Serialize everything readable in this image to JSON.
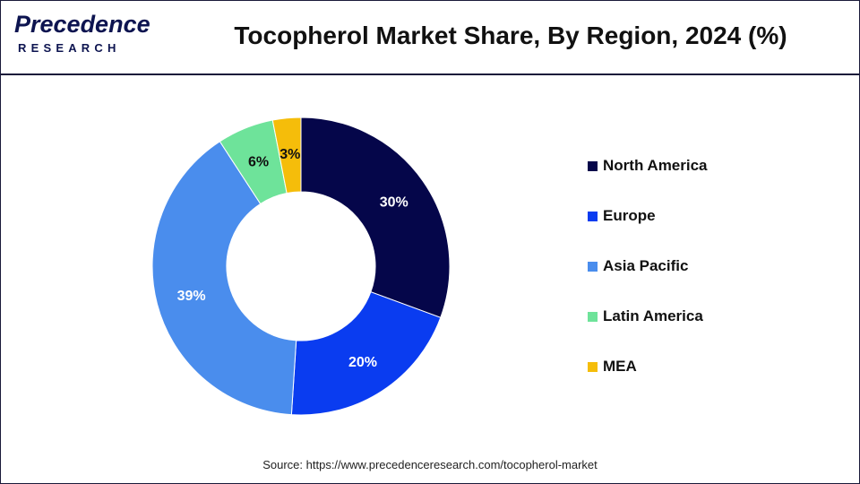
{
  "header": {
    "logo_main": "Precedence",
    "logo_sub": "RESEARCH",
    "title": "Tocopherol Market Share, By Region, 2024 (%)"
  },
  "chart_data": {
    "type": "pie",
    "donut": true,
    "title": "Tocopherol Market Share, By Region, 2024 (%)",
    "categories": [
      "North America",
      "Europe",
      "Asia Pacific",
      "Latin America",
      "MEA"
    ],
    "values": [
      30,
      20,
      39,
      6,
      3
    ],
    "labels": [
      "30%",
      "20%",
      "39%",
      "6%",
      "3%"
    ],
    "colors": [
      "#05064a",
      "#0a3cf0",
      "#4a8ded",
      "#6ee39a",
      "#f5bd0a"
    ],
    "label_colors": [
      "#ffffff",
      "#ffffff",
      "#ffffff",
      "#111111",
      "#111111"
    ],
    "legend_position": "right"
  },
  "legend": {
    "items": [
      {
        "label": "North America",
        "color": "#05064a"
      },
      {
        "label": "Europe",
        "color": "#0a3cf0"
      },
      {
        "label": "Asia Pacific",
        "color": "#4a8ded"
      },
      {
        "label": "Latin America",
        "color": "#6ee39a"
      },
      {
        "label": "MEA",
        "color": "#f5bd0a"
      }
    ]
  },
  "footer": {
    "source": "Source: https://www.precedenceresearch.com/tocopherol-market"
  }
}
